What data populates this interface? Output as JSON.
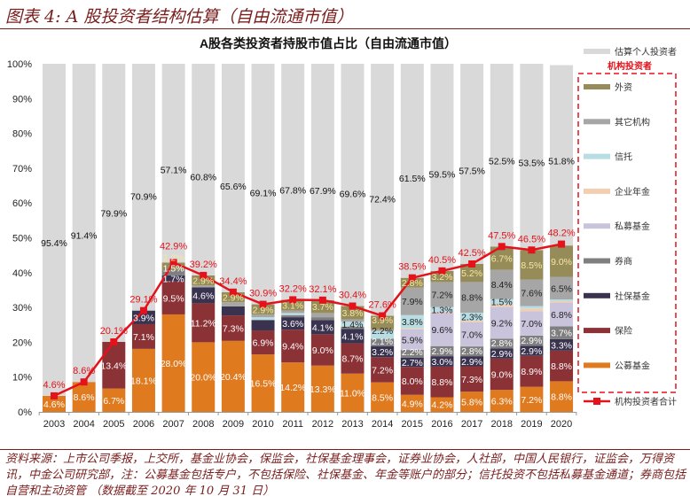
{
  "figure_title": "图表 4: A 股投资者结构估算（自由流通市值）",
  "source_note": "资料来源：上市公司季报，上交所，基金业协会，保监会，社保基金理事会，证券业协会，人社部，中国人民银行，证监会，万得资讯，中金公司研究部，注：公募基金包括专户，不包括保险、社保基金、年金等账户的部分；信托投资不包括私募基金通道；券商包括自营和主动资管 （数据截至 2020 年 10 月 31 日）",
  "chart_data": {
    "type": "bar",
    "stacked": true,
    "title": "A股各类投资者持股市值占比（自由流通市值）",
    "xlabel": "",
    "ylabel": "",
    "ylim": [
      0,
      100
    ],
    "yticks": [
      "0%",
      "10%",
      "20%",
      "30%",
      "40%",
      "50%",
      "60%",
      "70%",
      "80%",
      "90%",
      "100%"
    ],
    "grid": false,
    "legend_position": "right",
    "legend_group_label": "机构投资者",
    "categories": [
      "2003",
      "2004",
      "2005",
      "2006",
      "2007",
      "2008",
      "2009",
      "2010",
      "2011",
      "2012",
      "2013",
      "2014",
      "2015",
      "2016",
      "2017",
      "2018",
      "2019",
      "2020"
    ],
    "series": [
      {
        "name": "公募基金",
        "color": "#e07a1f",
        "label_color": "#ffffff",
        "values": [
          4.6,
          8.6,
          6.7,
          18.1,
          28.0,
          20.0,
          20.4,
          16.5,
          14.2,
          13.3,
          11.0,
          8.5,
          4.9,
          4.2,
          5.8,
          6.3,
          7.2,
          8.8
        ],
        "labels": [
          "4.6%",
          "8.6%",
          "6.7%",
          "18.1%",
          "28.0%",
          "20.0%",
          "20.4%",
          "16.5%",
          "14.2%",
          "13.3%",
          "11.0%",
          "8.5%",
          "4.9%",
          "4.2%",
          "5.8%",
          "6.3%",
          "7.2%",
          "8.8%"
        ]
      },
      {
        "name": "保险",
        "color": "#8b3236",
        "label_color": "#ffffff",
        "values": [
          0,
          0,
          13.4,
          7.1,
          9.5,
          11.2,
          7.3,
          6.9,
          9.4,
          9.0,
          8.7,
          7.2,
          8.0,
          8.8,
          7.3,
          9.0,
          8.9,
          8.8
        ],
        "labels": [
          "",
          "",
          "13.4%",
          "7.1%",
          "9.5%",
          "11.2%",
          "7.3%",
          "6.9%",
          "9.4%",
          "9.0%",
          "8.7%",
          "7.2%",
          "8.0%",
          "8.8%",
          "7.3%",
          "9.0%",
          "8.9%",
          "8.8%"
        ]
      },
      {
        "name": "社保基金",
        "color": "#3a3350",
        "label_color": "#ffffff",
        "values": [
          0,
          0,
          0,
          3.9,
          1.7,
          4.6,
          2.6,
          3.0,
          3.6,
          4.1,
          4.1,
          3.2,
          2.7,
          3.0,
          2.9,
          2.9,
          2.9,
          3.3
        ],
        "labels": [
          "",
          "",
          "",
          "3.9%",
          "1.7%",
          "4.6%",
          "",
          "",
          "3.6%",
          "4.1%",
          "4.1%",
          "3.2%",
          "2.7%",
          "3.0%",
          "2.9%",
          "2.9%",
          "2.9%",
          "3.3%"
        ]
      },
      {
        "name": "券商",
        "color": "#7f7f7f",
        "label_color": "#ffffff",
        "values": [
          0,
          0,
          0,
          0,
          1.5,
          0,
          0,
          0,
          0.6,
          0.8,
          0.7,
          2.1,
          2.2,
          2.9,
          2.8,
          2.8,
          2.9,
          3.7
        ],
        "labels": [
          "",
          "",
          "",
          "",
          "1.5%",
          "",
          "",
          "",
          "",
          "",
          "",
          "2.1%",
          "2.2%",
          "2.9%",
          "2.8%",
          "2.8%",
          "2.9%",
          "3.7%"
        ]
      },
      {
        "name": "私募基金",
        "color": "#c9c3dc",
        "label_color": "#222222",
        "values": [
          0,
          0,
          0,
          0,
          0,
          0,
          0,
          0,
          0,
          0,
          0,
          0,
          5.9,
          9.6,
          7.0,
          9.2,
          7.0,
          6.8
        ],
        "labels": [
          "",
          "",
          "",
          "",
          "",
          "",
          "",
          "",
          "",
          "",
          "",
          "",
          "5.9%",
          "9.6%",
          "7.0%",
          "9.2%",
          "7.0%",
          "6.8%"
        ]
      },
      {
        "name": "企业年金",
        "color": "#f2cfb0",
        "label_color": "#222222",
        "values": [
          0,
          0,
          0,
          0,
          0,
          0,
          0,
          0,
          0,
          0,
          0,
          0,
          0.3,
          0.3,
          0.4,
          0.7,
          0.8,
          0.4
        ],
        "labels": [
          "",
          "",
          "",
          "",
          "",
          "",
          "",
          "",
          "",
          "",
          "",
          "",
          "",
          "",
          "",
          "",
          "",
          ""
        ]
      },
      {
        "name": "信托",
        "color": "#b8dde3",
        "label_color": "#222222",
        "values": [
          0,
          0,
          0,
          0,
          0,
          0,
          0,
          0.8,
          0.6,
          0,
          1.4,
          2.2,
          3.8,
          1.3,
          2.3,
          1.5,
          0.7,
          0.5
        ],
        "labels": [
          "",
          "",
          "",
          "",
          "",
          "",
          "",
          "",
          "",
          "",
          "1.4%",
          "2.2%",
          "3.8%",
          "1.3%",
          "2.3%",
          "1.5%",
          "",
          ""
        ]
      },
      {
        "name": "其它机构",
        "color": "#a6a6a6",
        "label_color": "#222222",
        "values": [
          0,
          0,
          0,
          0,
          0,
          0.5,
          1.2,
          0.8,
          0.7,
          1.2,
          0.7,
          0.5,
          7.9,
          7.2,
          8.8,
          8.4,
          7.6,
          6.5
        ],
        "labels": [
          "",
          "",
          "",
          "",
          "",
          "",
          "",
          "",
          "",
          "",
          "",
          "",
          "7.9%",
          "7.2%",
          "8.8%",
          "8.4%",
          "7.6%",
          "6.5%"
        ]
      },
      {
        "name": "外资",
        "color": "#968c5a",
        "label_color": "#f6e7a0",
        "values": [
          0,
          0,
          0,
          0,
          2.2,
          2.9,
          2.9,
          2.9,
          3.1,
          3.7,
          3.8,
          3.9,
          2.8,
          3.2,
          5.2,
          6.7,
          8.5,
          9.0
        ],
        "labels": [
          "",
          "",
          "",
          "",
          "2.2%",
          "2.9%",
          "2.9%",
          "2.9%",
          "3.1%",
          "3.7%",
          "3.8%",
          "3.9%",
          "2.8%",
          "3.2%",
          "5.2%",
          "6.7%",
          "8.5%",
          "9.0%"
        ]
      },
      {
        "name": "估算个人投资者",
        "color": "#d9d9d9",
        "label_color": "#111111",
        "values": [
          95.4,
          91.4,
          79.9,
          70.9,
          57.1,
          60.8,
          65.6,
          69.1,
          67.8,
          67.9,
          69.6,
          72.4,
          61.5,
          59.5,
          57.5,
          52.5,
          53.5,
          51.8
        ],
        "labels": [
          "95.4%",
          "91.4%",
          "79.9%",
          "70.9%",
          "57.1%",
          "60.8%",
          "65.6%",
          "69.1%",
          "67.8%",
          "67.9%",
          "69.6%",
          "72.4%",
          "61.5%",
          "59.5%",
          "57.5%",
          "52.5%",
          "53.5%",
          "51.8%"
        ]
      }
    ],
    "line_series": {
      "name": "机构投资者合计",
      "color": "#e3121b",
      "values": [
        4.6,
        8.6,
        20.1,
        29.1,
        42.9,
        39.2,
        34.4,
        30.9,
        32.2,
        32.1,
        30.4,
        27.6,
        38.5,
        40.5,
        42.5,
        47.5,
        46.5,
        48.2
      ],
      "labels": [
        "4.6%",
        "8.6%",
        "20.1%",
        "29.1%",
        "42.9%",
        "39.2%",
        "34.4%",
        "30.9%",
        "32.2%",
        "32.1%",
        "30.4%",
        "27.6%",
        "38.5%",
        "40.5%",
        "42.5%",
        "47.5%",
        "46.5%",
        "48.2%"
      ]
    }
  }
}
